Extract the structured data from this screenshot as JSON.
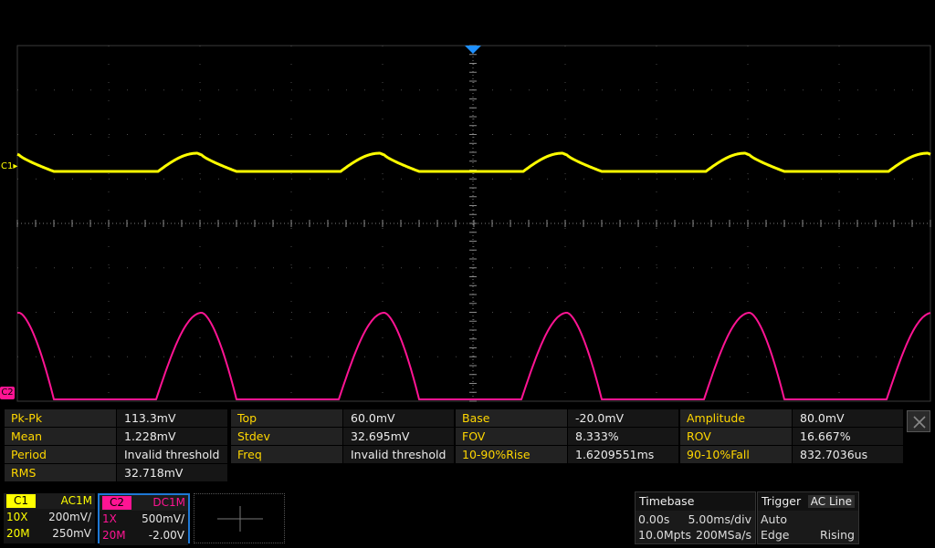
{
  "channels": {
    "c1": {
      "name": "C1",
      "color": "#ffff00",
      "coupling": "AC1M",
      "probe": "10X",
      "scale": "200mV/",
      "bw": "20M",
      "offset": "250mV"
    },
    "c2": {
      "name": "C2",
      "color": "#ff1493",
      "coupling": "DC1M",
      "probe": "1X",
      "scale": "500mV/",
      "bw": "20M",
      "offset": "-2.00V"
    }
  },
  "waveforms": {
    "c1": {
      "shape": "half-rectified-ripple",
      "color": "#ffff00"
    },
    "c2": {
      "shape": "half-wave-rectified",
      "color": "#ff1493"
    }
  },
  "measurements": [
    [
      {
        "label": "Pk-Pk",
        "value": "113.3mV"
      },
      {
        "label": "Top",
        "value": "60.0mV"
      },
      {
        "label": "Base",
        "value": "-20.0mV"
      },
      {
        "label": "Amplitude",
        "value": "80.0mV"
      }
    ],
    [
      {
        "label": "Mean",
        "value": "1.228mV"
      },
      {
        "label": "Stdev",
        "value": "32.695mV"
      },
      {
        "label": "FOV",
        "value": "8.333%"
      },
      {
        "label": "ROV",
        "value": "16.667%"
      }
    ],
    [
      {
        "label": "Period",
        "value": "Invalid threshold"
      },
      {
        "label": "Freq",
        "value": "Invalid threshold"
      },
      {
        "label": "10-90%Rise",
        "value": "1.6209551ms"
      },
      {
        "label": "90-10%Fall",
        "value": "832.7036us"
      }
    ],
    [
      {
        "label": "RMS",
        "value": "32.718mV"
      }
    ]
  ],
  "timebase": {
    "title": "Timebase",
    "delay": "0.00s",
    "scale": "5.00ms/div",
    "memory": "10.0Mpts",
    "rate": "200MSa/s"
  },
  "trigger": {
    "title": "Trigger",
    "source": "AC Line",
    "mode": "Auto",
    "type": "Edge",
    "slope": "Rising"
  },
  "icons": {
    "trigger_position": "triangle-down-icon",
    "close": "close-icon",
    "add_channel": "crosshair-icon"
  }
}
